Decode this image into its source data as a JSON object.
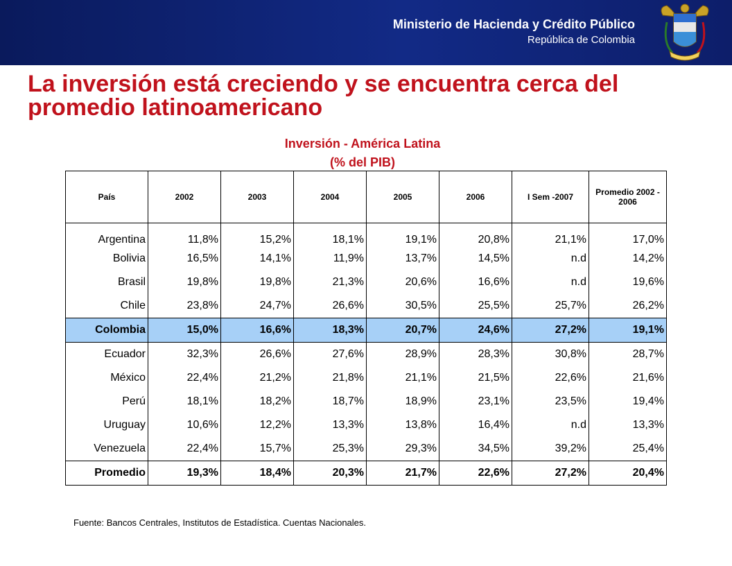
{
  "header": {
    "ministry": "Ministerio de Hacienda y Crédito Público",
    "country": "República de Colombia"
  },
  "slide": {
    "title": "La inversión está creciendo y se encuentra cerca del promedio latinoamericano",
    "subtitle_line1": "Inversión - América Latina",
    "subtitle_line2": "(% del PIB)"
  },
  "table": {
    "headers": [
      "País",
      "2002",
      "2003",
      "2004",
      "2005",
      "2006",
      "I Sem -2007",
      "Promedio 2002 - 2006"
    ],
    "rows": [
      [
        "Argentina",
        "11,8%",
        "15,2%",
        "18,1%",
        "19,1%",
        "20,8%",
        "21,1%",
        "17,0%"
      ],
      [
        "Bolivia",
        "16,5%",
        "14,1%",
        "11,9%",
        "13,7%",
        "14,5%",
        "n.d",
        "14,2%"
      ],
      [
        "Brasil",
        "19,8%",
        "19,8%",
        "21,3%",
        "20,6%",
        "16,6%",
        "n.d",
        "19,6%"
      ],
      [
        "Chile",
        "23,8%",
        "24,7%",
        "26,6%",
        "30,5%",
        "25,5%",
        "25,7%",
        "26,2%"
      ],
      [
        "Colombia",
        "15,0%",
        "16,6%",
        "18,3%",
        "20,7%",
        "24,6%",
        "27,2%",
        "19,1%"
      ],
      [
        "Ecuador",
        "32,3%",
        "26,6%",
        "27,6%",
        "28,9%",
        "28,3%",
        "30,8%",
        "28,7%"
      ],
      [
        "México",
        "22,4%",
        "21,2%",
        "21,8%",
        "21,1%",
        "21,5%",
        "22,6%",
        "21,6%"
      ],
      [
        "Perú",
        "18,1%",
        "18,2%",
        "18,7%",
        "18,9%",
        "23,1%",
        "23,5%",
        "19,4%"
      ],
      [
        "Uruguay",
        "10,6%",
        "12,2%",
        "13,3%",
        "13,8%",
        "16,4%",
        "n.d",
        "13,3%"
      ],
      [
        "Venezuela",
        "22,4%",
        "15,7%",
        "25,3%",
        "29,3%",
        "34,5%",
        "39,2%",
        "25,4%"
      ],
      [
        "Promedio",
        "19,3%",
        "18,4%",
        "20,3%",
        "21,7%",
        "22,6%",
        "27,2%",
        "20,4%"
      ]
    ]
  },
  "source": "Fuente: Bancos Centrales, Institutos de Estadística. Cuentas Nacionales.",
  "colors": {
    "title": "#c0121c",
    "header_bar": "#122a86",
    "highlight_row": "#a7d0f7"
  },
  "icons": {
    "seal": "colombia-coat-of-arms"
  }
}
